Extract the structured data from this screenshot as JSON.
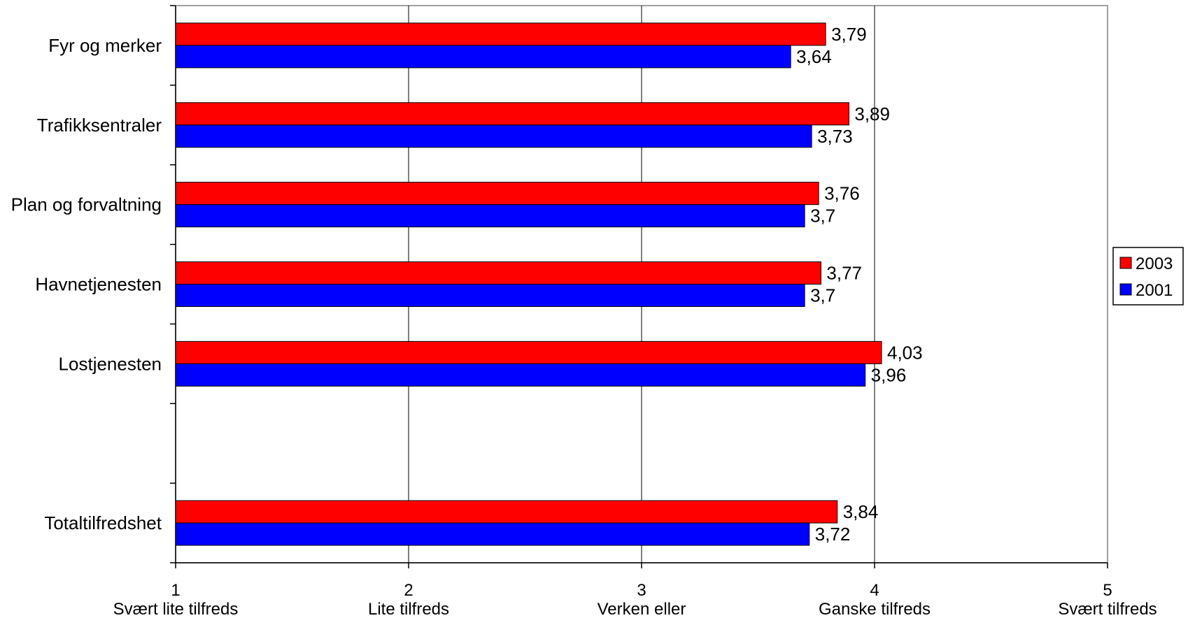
{
  "chart_data": {
    "type": "bar",
    "orientation": "horizontal",
    "categories": [
      "Fyr og merker",
      "Trafikksentraler",
      "Plan og forvaltning",
      "Havnetjenesten",
      "Lostjenesten",
      "",
      "Totaltilfredshet"
    ],
    "series": [
      {
        "name": "2003",
        "color": "#ff0000",
        "values": [
          3.79,
          3.89,
          3.76,
          3.77,
          4.03,
          null,
          3.84
        ],
        "labels": [
          "3,79",
          "3,89",
          "3,76",
          "3,77",
          "4,03",
          "",
          "3,84"
        ]
      },
      {
        "name": "2001",
        "color": "#0000ff",
        "values": [
          3.64,
          3.73,
          3.7,
          3.7,
          3.96,
          null,
          3.72
        ],
        "labels": [
          "3,64",
          "3,73",
          "3,7",
          "3,7",
          "3,96",
          "",
          "3,72"
        ]
      }
    ],
    "xlim": [
      1,
      5
    ],
    "x_ticks": [
      {
        "value": 1,
        "label": "1",
        "sublabel": "Svært lite  tilfreds"
      },
      {
        "value": 2,
        "label": "2",
        "sublabel": "Lite tilfreds"
      },
      {
        "value": 3,
        "label": "3",
        "sublabel": "Verken eller"
      },
      {
        "value": 4,
        "label": "4",
        "sublabel": "Ganske tilfreds"
      },
      {
        "value": 5,
        "label": "5",
        "sublabel": "Svært tilfreds"
      }
    ],
    "grid": "vertical",
    "legend": {
      "position": "right",
      "entries": [
        "2003",
        "2001"
      ]
    }
  }
}
